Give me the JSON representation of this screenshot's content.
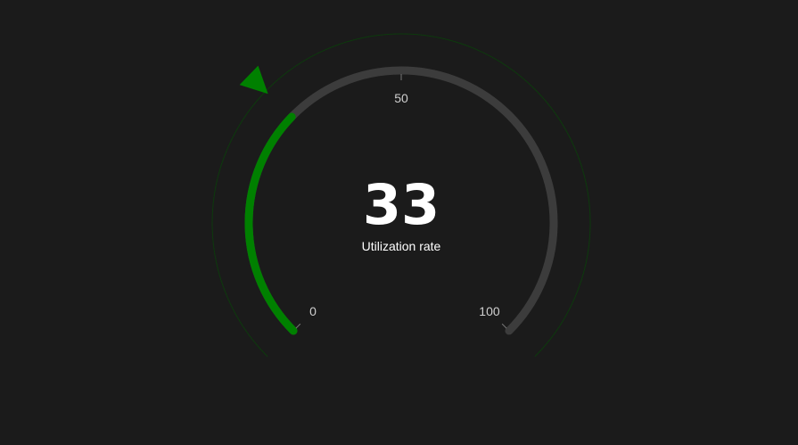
{
  "chart_data": {
    "type": "gauge",
    "value": 33,
    "min": 0,
    "max": 100,
    "label": "Utilization rate",
    "ticks": [
      {
        "value": 0,
        "label": "0"
      },
      {
        "value": 50,
        "label": "50"
      },
      {
        "value": 100,
        "label": "100"
      }
    ],
    "colors": {
      "background": "#1b1b1b",
      "progress": "#008000",
      "track": "#3c3c3c",
      "outer_ring": "#0d3a0d",
      "pointer": "#008000",
      "value_text": "#ffffff",
      "tick_text": "#cfcfcf"
    }
  }
}
